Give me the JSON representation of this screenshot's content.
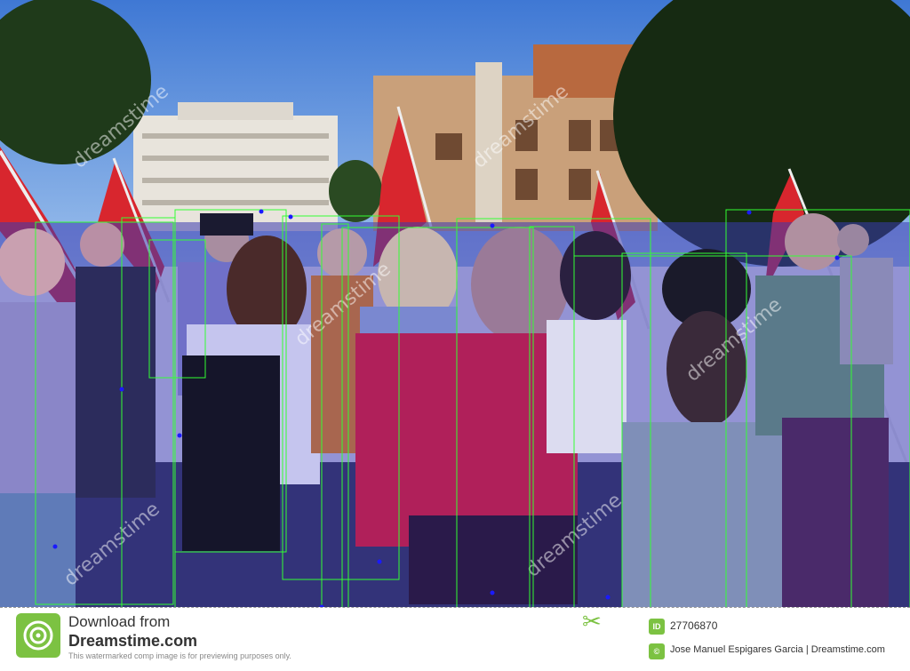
{
  "footer": {
    "download_from": "Download from",
    "brand": "Dreamstime.com",
    "notice": "This watermarked comp image is for previewing purposes only.",
    "id_label": "ID",
    "image_id": "27706870",
    "credit": "Jose Manuel Espigares Garcia | Dreamstime.com"
  },
  "watermark": {
    "text": "dreamstime"
  },
  "colors": {
    "sky": "#5b8fd6",
    "overlay_blue": "#2a2ad8",
    "box_green": "#33ff33",
    "brand_green": "#7cc242"
  }
}
